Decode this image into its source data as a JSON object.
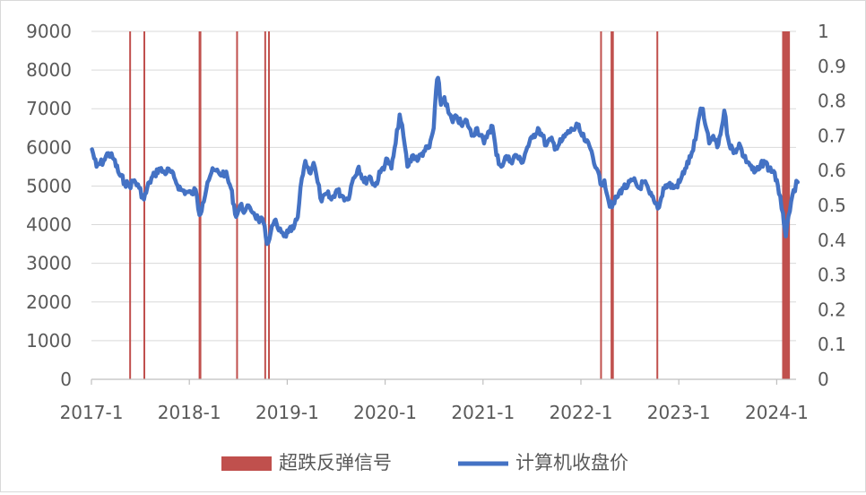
{
  "chart_data": {
    "type": "line+bar",
    "title": "",
    "x_tick_labels": [
      "2017-1",
      "2018-1",
      "2019-1",
      "2020-1",
      "2021-1",
      "2022-1",
      "2023-1",
      "2024-1"
    ],
    "x_range": [
      "2017-01",
      "2024-03"
    ],
    "y_left": {
      "ticks": [
        0,
        1000,
        2000,
        3000,
        4000,
        5000,
        6000,
        7000,
        8000,
        9000
      ],
      "range": [
        0,
        9000
      ]
    },
    "y_right": {
      "ticks": [
        "0",
        "0.1",
        "0.2",
        "0.3",
        "0.4",
        "0.5",
        "0.6",
        "0.7",
        "0.8",
        "0.9",
        "1"
      ],
      "range": [
        0,
        1
      ]
    },
    "gridlines": "horizontal",
    "legend_position": "bottom",
    "series": [
      {
        "name": "超跌反弹信号",
        "kind": "bar",
        "axis": "right",
        "color": "#c0504d",
        "signal_value": 1,
        "signals": [
          {
            "start": "2017-05-22",
            "end": "2017-05-24"
          },
          {
            "start": "2017-07-14",
            "end": "2017-07-16"
          },
          {
            "start": "2018-02-05",
            "end": "2018-02-15"
          },
          {
            "start": "2018-06-25",
            "end": "2018-06-27"
          },
          {
            "start": "2018-10-08",
            "end": "2018-10-10"
          },
          {
            "start": "2018-10-22",
            "end": "2018-10-24"
          },
          {
            "start": "2022-03-14",
            "end": "2022-03-16"
          },
          {
            "start": "2022-04-22",
            "end": "2022-05-04"
          },
          {
            "start": "2022-10-10",
            "end": "2022-10-12"
          },
          {
            "start": "2024-01-22",
            "end": "2024-02-20"
          }
        ]
      },
      {
        "name": "计算机收盘价",
        "kind": "line",
        "axis": "left",
        "color": "#4472c4",
        "points": [
          [
            "2017-01-03",
            5950
          ],
          [
            "2017-01-20",
            5500
          ],
          [
            "2017-02-15",
            5650
          ],
          [
            "2017-03-05",
            5850
          ],
          [
            "2017-03-25",
            5700
          ],
          [
            "2017-04-15",
            5300
          ],
          [
            "2017-05-05",
            5100
          ],
          [
            "2017-05-22",
            5000
          ],
          [
            "2017-06-10",
            5150
          ],
          [
            "2017-06-28",
            4950
          ],
          [
            "2017-07-16",
            4650
          ],
          [
            "2017-08-05",
            5100
          ],
          [
            "2017-08-25",
            5300
          ],
          [
            "2017-09-10",
            5450
          ],
          [
            "2017-09-30",
            5350
          ],
          [
            "2017-10-20",
            5400
          ],
          [
            "2017-11-10",
            5150
          ],
          [
            "2017-11-30",
            4900
          ],
          [
            "2017-12-20",
            4850
          ],
          [
            "2018-01-10",
            4800
          ],
          [
            "2018-01-25",
            4900
          ],
          [
            "2018-02-08",
            4250
          ],
          [
            "2018-02-20",
            4550
          ],
          [
            "2018-03-10",
            5100
          ],
          [
            "2018-03-25",
            5350
          ],
          [
            "2018-04-10",
            5400
          ],
          [
            "2018-04-25",
            5300
          ],
          [
            "2018-05-15",
            5350
          ],
          [
            "2018-06-05",
            4950
          ],
          [
            "2018-06-25",
            4200
          ],
          [
            "2018-07-10",
            4500
          ],
          [
            "2018-07-28",
            4350
          ],
          [
            "2018-08-15",
            4450
          ],
          [
            "2018-08-30",
            4300
          ],
          [
            "2018-09-15",
            4150
          ],
          [
            "2018-10-05",
            4050
          ],
          [
            "2018-10-18",
            3500
          ],
          [
            "2018-11-01",
            3800
          ],
          [
            "2018-11-15",
            4100
          ],
          [
            "2018-12-01",
            3850
          ],
          [
            "2018-12-20",
            3700
          ],
          [
            "2019-01-05",
            3800
          ],
          [
            "2019-01-25",
            3900
          ],
          [
            "2019-02-10",
            4200
          ],
          [
            "2019-02-25",
            5200
          ],
          [
            "2019-03-10",
            5650
          ],
          [
            "2019-03-25",
            5350
          ],
          [
            "2019-04-10",
            5600
          ],
          [
            "2019-04-25",
            5100
          ],
          [
            "2019-05-10",
            4600
          ],
          [
            "2019-05-30",
            4800
          ],
          [
            "2019-06-15",
            4650
          ],
          [
            "2019-07-05",
            4900
          ],
          [
            "2019-07-25",
            4750
          ],
          [
            "2019-08-15",
            4650
          ],
          [
            "2019-09-05",
            5200
          ],
          [
            "2019-09-25",
            5500
          ],
          [
            "2019-10-15",
            5100
          ],
          [
            "2019-11-05",
            5250
          ],
          [
            "2019-11-25",
            5000
          ],
          [
            "2019-12-15",
            5350
          ],
          [
            "2020-01-10",
            5700
          ],
          [
            "2020-01-25",
            5450
          ],
          [
            "2020-02-10",
            6100
          ],
          [
            "2020-02-25",
            6850
          ],
          [
            "2020-03-10",
            6300
          ],
          [
            "2020-03-25",
            5500
          ],
          [
            "2020-04-15",
            5800
          ],
          [
            "2020-05-05",
            5700
          ],
          [
            "2020-05-25",
            5900
          ],
          [
            "2020-06-15",
            6000
          ],
          [
            "2020-07-01",
            6500
          ],
          [
            "2020-07-10",
            7500
          ],
          [
            "2020-07-17",
            7800
          ],
          [
            "2020-07-28",
            7100
          ],
          [
            "2020-08-10",
            7300
          ],
          [
            "2020-08-25",
            6900
          ],
          [
            "2020-09-10",
            6650
          ],
          [
            "2020-09-25",
            6800
          ],
          [
            "2020-10-15",
            6550
          ],
          [
            "2020-11-01",
            6700
          ],
          [
            "2020-11-20",
            6300
          ],
          [
            "2020-12-10",
            6500
          ],
          [
            "2021-01-05",
            6100
          ],
          [
            "2021-01-20",
            6400
          ],
          [
            "2021-02-05",
            6550
          ],
          [
            "2021-02-20",
            5800
          ],
          [
            "2021-03-10",
            5500
          ],
          [
            "2021-03-25",
            5750
          ],
          [
            "2021-04-15",
            5650
          ],
          [
            "2021-05-05",
            5800
          ],
          [
            "2021-05-25",
            5600
          ],
          [
            "2021-06-15",
            6000
          ],
          [
            "2021-07-05",
            6250
          ],
          [
            "2021-07-25",
            6500
          ],
          [
            "2021-08-10",
            6300
          ],
          [
            "2021-08-25",
            6050
          ],
          [
            "2021-09-10",
            6200
          ],
          [
            "2021-09-30",
            6000
          ],
          [
            "2021-10-20",
            6150
          ],
          [
            "2021-11-10",
            6350
          ],
          [
            "2021-11-30",
            6450
          ],
          [
            "2021-12-20",
            6550
          ],
          [
            "2022-01-05",
            6300
          ],
          [
            "2022-01-20",
            6150
          ],
          [
            "2022-02-10",
            5900
          ],
          [
            "2022-03-01",
            5450
          ],
          [
            "2022-03-15",
            5050
          ],
          [
            "2022-03-30",
            5150
          ],
          [
            "2022-04-15",
            4600
          ],
          [
            "2022-04-27",
            4450
          ],
          [
            "2022-05-15",
            4700
          ],
          [
            "2022-06-05",
            4950
          ],
          [
            "2022-06-25",
            5000
          ],
          [
            "2022-07-15",
            5150
          ],
          [
            "2022-08-05",
            4950
          ],
          [
            "2022-08-25",
            5100
          ],
          [
            "2022-09-15",
            4800
          ],
          [
            "2022-10-05",
            4550
          ],
          [
            "2022-10-20",
            4450
          ],
          [
            "2022-11-05",
            4950
          ],
          [
            "2022-11-25",
            5050
          ],
          [
            "2022-12-15",
            4950
          ],
          [
            "2023-01-05",
            5100
          ],
          [
            "2023-01-25",
            5450
          ],
          [
            "2023-02-15",
            5750
          ],
          [
            "2023-03-05",
            6200
          ],
          [
            "2023-03-20",
            6850
          ],
          [
            "2023-04-01",
            7000
          ],
          [
            "2023-04-10",
            6600
          ],
          [
            "2023-04-25",
            6100
          ],
          [
            "2023-05-10",
            6300
          ],
          [
            "2023-05-25",
            6000
          ],
          [
            "2023-06-10",
            6500
          ],
          [
            "2023-06-20",
            6950
          ],
          [
            "2023-07-05",
            6200
          ],
          [
            "2023-07-25",
            5850
          ],
          [
            "2023-08-15",
            6100
          ],
          [
            "2023-09-01",
            5750
          ],
          [
            "2023-09-20",
            5600
          ],
          [
            "2023-10-10",
            5350
          ],
          [
            "2023-10-30",
            5450
          ],
          [
            "2023-11-15",
            5650
          ],
          [
            "2023-12-05",
            5450
          ],
          [
            "2023-12-25",
            5350
          ],
          [
            "2024-01-10",
            4800
          ],
          [
            "2024-01-25",
            4300
          ],
          [
            "2024-02-05",
            3700
          ],
          [
            "2024-02-20",
            4350
          ],
          [
            "2024-03-05",
            4900
          ],
          [
            "2024-03-20",
            5100
          ]
        ]
      }
    ]
  }
}
